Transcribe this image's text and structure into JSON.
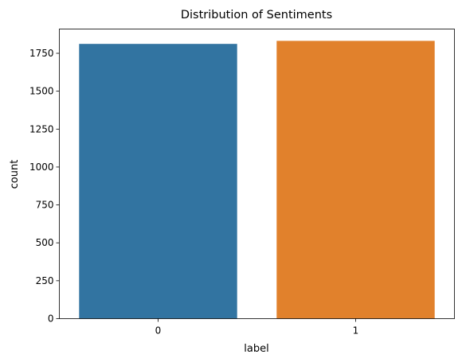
{
  "chart_data": {
    "type": "bar",
    "title": "Distribution of Sentiments",
    "xlabel": "label",
    "ylabel": "count",
    "categories": [
      "0",
      "1"
    ],
    "values": [
      1812,
      1832
    ],
    "colors": [
      "#3274a1",
      "#e1812c"
    ],
    "ylim": [
      0,
      1910
    ],
    "yticks": [
      0,
      250,
      500,
      750,
      1000,
      1250,
      1500,
      1750
    ],
    "grid": false
  }
}
